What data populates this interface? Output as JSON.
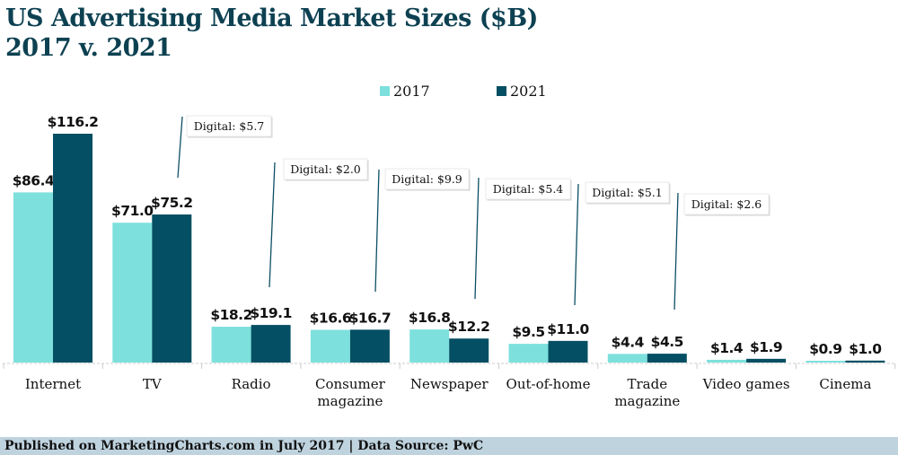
{
  "title_line1": "US Advertising Media Market Sizes ($B)",
  "title_line2": "2017 v. 2021",
  "colors": {
    "2017": "#7de0dc",
    "2021": "#044f63",
    "leader": "#0d4f63",
    "title": "#0d4152",
    "footer_bg": "#bfd3df"
  },
  "footer": "Published on MarketingCharts.com in July 2017 | Data Source: PwC",
  "chart_data": {
    "type": "bar",
    "title": "US Advertising Media Market Sizes ($B) 2017 v. 2021",
    "xlabel": "",
    "ylabel": "",
    "ylim": [
      0,
      116.2
    ],
    "grid": false,
    "legend": "top-center",
    "categories": [
      "Internet",
      "TV",
      "Radio",
      "Consumer magazine",
      "Newspaper",
      "Out-of-home",
      "Trade magazine",
      "Video games",
      "Cinema"
    ],
    "category_lines": [
      [
        "Internet"
      ],
      [
        "TV"
      ],
      [
        "Radio"
      ],
      [
        "Consumer",
        "magazine"
      ],
      [
        "Newspaper"
      ],
      [
        "Out-of-home"
      ],
      [
        "Trade",
        "magazine"
      ],
      [
        "Video games"
      ],
      [
        "Cinema"
      ]
    ],
    "series": [
      {
        "name": "2017",
        "values": [
          86.4,
          71.0,
          18.2,
          16.6,
          16.8,
          9.5,
          4.4,
          1.4,
          0.9
        ],
        "labels": [
          "$86.4",
          "$71.0",
          "$18.2",
          "$16.6",
          "$16.8",
          "$9.5",
          "$4.4",
          "$1.4",
          "$0.9"
        ]
      },
      {
        "name": "2021",
        "values": [
          116.2,
          75.2,
          19.1,
          16.7,
          12.2,
          11.0,
          4.5,
          1.9,
          1.0
        ],
        "labels": [
          "$116.2",
          "$75.2",
          "$19.1",
          "$16.7",
          "$12.2",
          "$11.0",
          "$4.5",
          "$1.9",
          "$1.0"
        ]
      }
    ],
    "annotations": [
      {
        "category": "TV",
        "text": "Digital: $5.7"
      },
      {
        "category": "Radio",
        "text": "Digital: $2.0"
      },
      {
        "category": "Consumer magazine",
        "text": "Digital: $9.9"
      },
      {
        "category": "Newspaper",
        "text": "Digital: $5.4"
      },
      {
        "category": "Out-of-home",
        "text": "Digital: $5.1"
      },
      {
        "category": "Trade magazine",
        "text": "Digital: $2.6"
      }
    ]
  }
}
